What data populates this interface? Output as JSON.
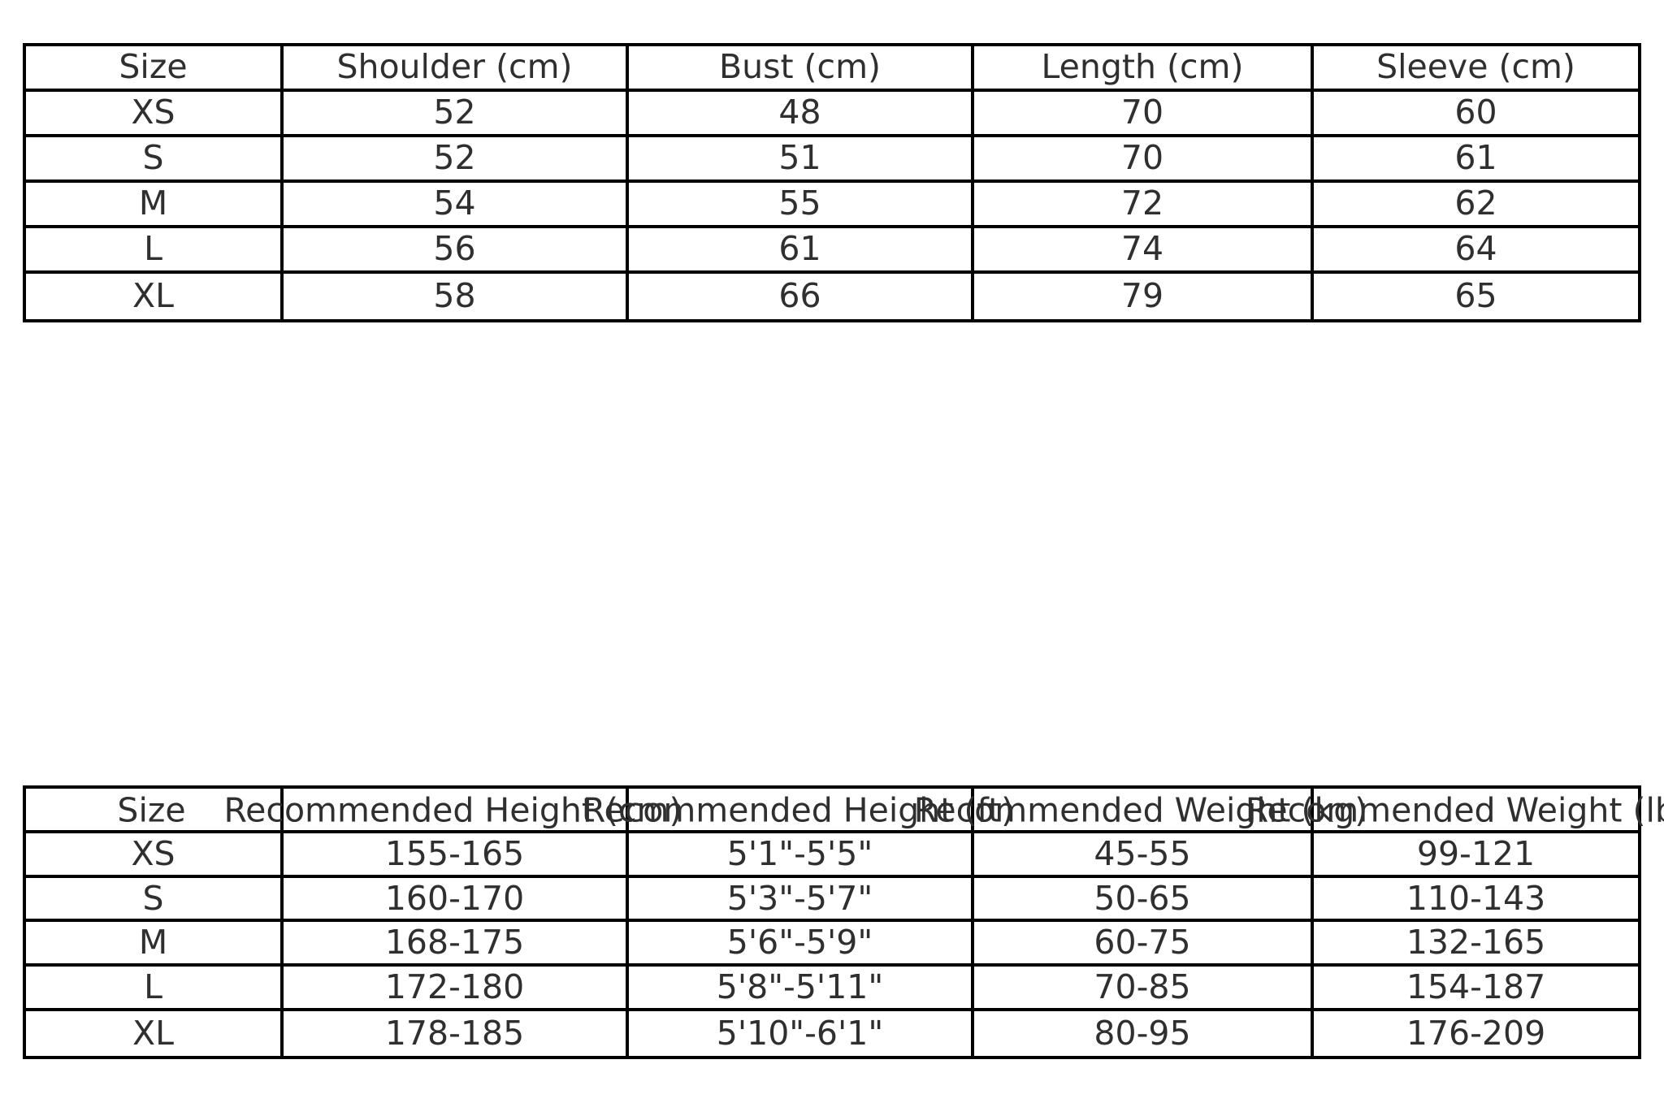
{
  "style": {
    "background": "#ffffff",
    "border_color": "#000000",
    "text_color": "#2f2f2f"
  },
  "chart_data": [
    {
      "type": "table",
      "title": "",
      "headers": [
        "Size",
        "Shoulder (cm)",
        "Bust (cm)",
        "Length (cm)",
        "Sleeve (cm)"
      ],
      "rows": [
        [
          "XS",
          "52",
          "48",
          "70",
          "60"
        ],
        [
          "S",
          "52",
          "51",
          "70",
          "61"
        ],
        [
          "M",
          "54",
          "55",
          "72",
          "62"
        ],
        [
          "L",
          "56",
          "61",
          "74",
          "64"
        ],
        [
          "XL",
          "58",
          "66",
          "79",
          "65"
        ]
      ],
      "layout": {
        "grid": "on",
        "header_text_fits": true
      }
    },
    {
      "type": "table",
      "title": "",
      "headers": [
        "Size",
        "Recommended Height (cm)",
        "Recommended Height (ft)",
        "Recommended Weight (kg)",
        "Recommended Weight (lbs)"
      ],
      "rows": [
        [
          "XS",
          "155-165",
          "5'1\"-5'5\"",
          "45-55",
          "99-121"
        ],
        [
          "S",
          "160-170",
          "5'3\"-5'7\"",
          "50-65",
          "110-143"
        ],
        [
          "M",
          "168-175",
          "5'6\"-5'9\"",
          "60-75",
          "132-165"
        ],
        [
          "L",
          "172-180",
          "5'8\"-5'11\"",
          "70-85",
          "154-187"
        ],
        [
          "XL",
          "178-185",
          "5'10\"-6'1\"",
          "80-95",
          "176-209"
        ]
      ],
      "layout": {
        "grid": "on",
        "header_text_fits": false,
        "header_overflow": "centered text overlaps adjacent columns; last header clipped at image edge"
      }
    }
  ]
}
